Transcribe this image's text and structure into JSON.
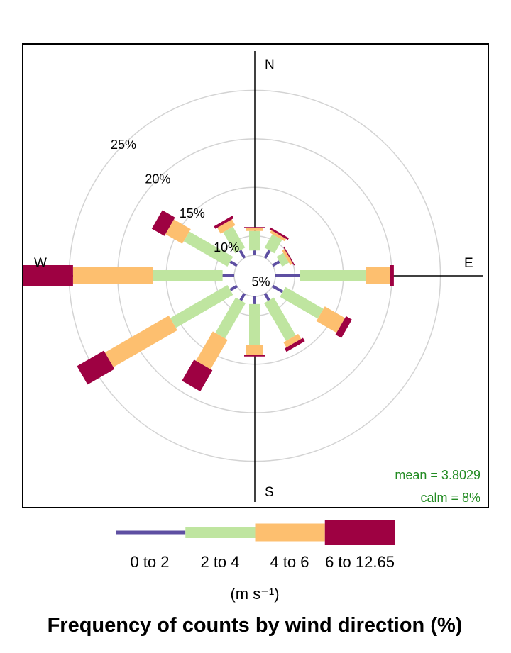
{
  "chart_data": {
    "type": "wind-rose",
    "title": "Frequency of counts by wind direction (%)",
    "unit_label": "(m s⁻¹)",
    "compass": {
      "north": "N",
      "east": "E",
      "south": "S",
      "west": "W"
    },
    "ring_values": [
      5,
      10,
      15,
      20,
      25
    ],
    "ring_labels": [
      "5%",
      "10%",
      "15%",
      "20%",
      "25%"
    ],
    "max_radius_pct": 30,
    "calm_pct": 8,
    "stats": {
      "mean": "mean = 3.8029",
      "calm": "calm = 8%"
    },
    "speed_bins": [
      "0 to 2",
      "2 to 4",
      "4 to 6",
      "6 to 12.65"
    ],
    "directions": [
      0,
      30,
      60,
      90,
      120,
      150,
      180,
      210,
      240,
      270,
      300,
      330
    ],
    "series": [
      {
        "name": "0 to 2",
        "color": "#5E4FA2",
        "values": [
          0.5,
          0.9,
          0.8,
          2.5,
          1.2,
          0.8,
          0.8,
          0.8,
          0.8,
          1.2,
          0.8,
          0.9
        ]
      },
      {
        "name": "2 to 4",
        "color": "#BFE5A0",
        "values": [
          2.0,
          1.6,
          0.8,
          6.8,
          4.5,
          4.5,
          4.2,
          4.2,
          6.8,
          7.2,
          5.2,
          2.5
        ]
      },
      {
        "name": "4 to 6",
        "color": "#FDBF6F",
        "values": [
          0.3,
          0.3,
          0.3,
          2.5,
          2.4,
          0.6,
          1.0,
          3.5,
          7.6,
          8.2,
          2.0,
          0.7
        ]
      },
      {
        "name": "6 to 12.65",
        "color": "#9E0142",
        "values": [
          0.1,
          0.2,
          0.1,
          0.4,
          0.7,
          0.4,
          0.2,
          2.5,
          3.2,
          7.0,
          1.5,
          0.3
        ]
      }
    ]
  }
}
